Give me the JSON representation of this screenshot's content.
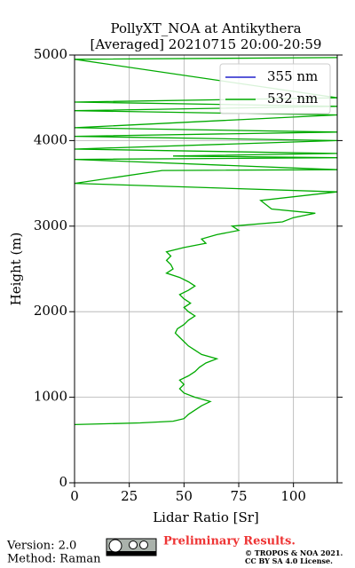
{
  "chart_data": {
    "type": "line",
    "title": "PollyXT_NOA at Antikythera",
    "subtitle": "[Averaged] 20210715 20:00-20:59",
    "x_label": "Lidar Ratio [Sr]",
    "y_label": "Height (m)",
    "xlim": [
      0,
      120
    ],
    "xticks": [
      0,
      25,
      50,
      75,
      100
    ],
    "ylim": [
      0,
      5000
    ],
    "yticks": [
      0,
      1000,
      2000,
      3000,
      4000,
      5000
    ],
    "grid": true,
    "legend": "upper right",
    "y": [
      680,
      700,
      720,
      750,
      800,
      850,
      900,
      950,
      1000,
      1050,
      1100,
      1150,
      1200,
      1250,
      1300,
      1350,
      1400,
      1450,
      1500,
      1550,
      1600,
      1650,
      1700,
      1750,
      1800,
      1850,
      1900,
      1950,
      2000,
      2050,
      2100,
      2150,
      2200,
      2250,
      2300,
      2350,
      2400,
      2450,
      2500,
      2550,
      2600,
      2650,
      2700,
      2750,
      2800,
      2850,
      2900,
      2950,
      3000,
      3050,
      3100,
      3150,
      3200,
      3300,
      3400,
      3450,
      3500,
      3650,
      3660,
      3780,
      3800,
      3820,
      3850,
      3900,
      4000,
      4050,
      4100,
      4150,
      4300,
      4350,
      4400,
      4450,
      4500,
      4950,
      4970
    ],
    "series": [
      {
        "name": "355 nm",
        "color": "#2222cc",
        "values": [
          null,
          null,
          null,
          null,
          null,
          null,
          null,
          null,
          null,
          null,
          null,
          null,
          null,
          null,
          null,
          null,
          null,
          null,
          null,
          null,
          null,
          null,
          null,
          null,
          null,
          null,
          null,
          null,
          null,
          null,
          null,
          null,
          null,
          null,
          null,
          null,
          null,
          null,
          null,
          null,
          null,
          null,
          null,
          null,
          null,
          null,
          null,
          null,
          null,
          null,
          null,
          null,
          null,
          null,
          null,
          null,
          null,
          null,
          null,
          null,
          null,
          null,
          null,
          null,
          null,
          null,
          null,
          null,
          null,
          null,
          null,
          null,
          null,
          null,
          null
        ]
      },
      {
        "name": "532 nm",
        "color": "#00aa00",
        "values": [
          0,
          30,
          45,
          50,
          52,
          55,
          58,
          62,
          55,
          50,
          48,
          50,
          48,
          52,
          55,
          57,
          60,
          65,
          58,
          55,
          52,
          50,
          48,
          46,
          47,
          50,
          52,
          55,
          52,
          50,
          53,
          50,
          48,
          52,
          55,
          52,
          48,
          42,
          45,
          44,
          42,
          44,
          42,
          50,
          60,
          58,
          65,
          75,
          72,
          95,
          100,
          110,
          90,
          85,
          120,
          60,
          0,
          40,
          120,
          0,
          120,
          45,
          120,
          0,
          120,
          0,
          120,
          0,
          120,
          0,
          120,
          0,
          120,
          0,
          120
        ]
      }
    ],
    "footer": {
      "version": "Version: 2.0",
      "method": "Method: Raman",
      "status": "Preliminary Results.",
      "copyright": "© TROPOS & NOA 2021.",
      "license": "CC BY SA 4.0 License."
    }
  }
}
